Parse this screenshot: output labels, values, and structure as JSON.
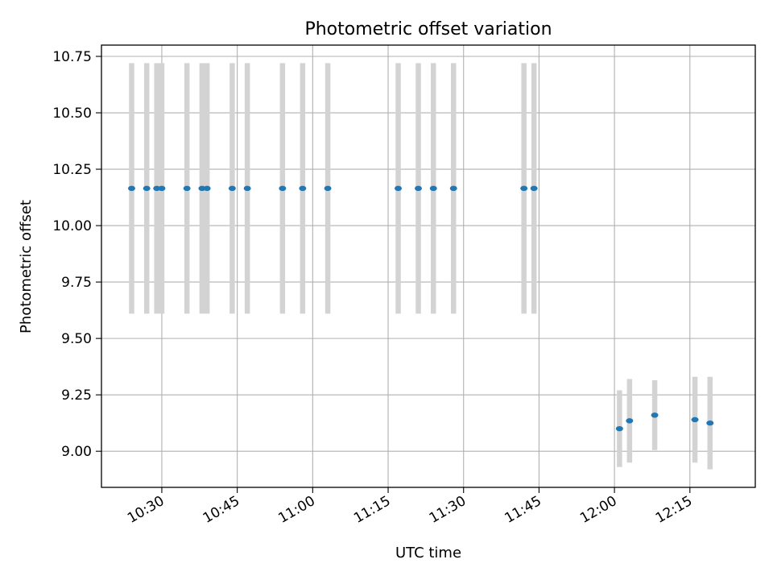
{
  "chart_data": {
    "type": "scatter",
    "title": "Photometric offset variation",
    "xlabel": "UTC time",
    "ylabel": "Photometric offset",
    "x_unit": "minutes after 10:00 UTC",
    "xlim": [
      "10:18",
      "12:28"
    ],
    "ylim": [
      8.84,
      10.8
    ],
    "grid": true,
    "legend": null,
    "x_ticks": [
      "10:30",
      "10:45",
      "11:00",
      "11:15",
      "11:30",
      "11:45",
      "12:00",
      "12:15"
    ],
    "y_ticks": [
      "9.00",
      "9.25",
      "9.50",
      "9.75",
      "10.00",
      "10.25",
      "10.50",
      "10.75"
    ],
    "colors": {
      "marker": "#1f77b4",
      "errorbar": "#d3d3d3",
      "grid": "#b0b0b0"
    },
    "series": [
      {
        "points": [
          {
            "t": "10:24",
            "y": 10.165,
            "err": 0.555
          },
          {
            "t": "10:27",
            "y": 10.165,
            "err": 0.555
          },
          {
            "t": "10:29",
            "y": 10.165,
            "err": 0.555
          },
          {
            "t": "10:30",
            "y": 10.165,
            "err": 0.555
          },
          {
            "t": "10:35",
            "y": 10.165,
            "err": 0.555
          },
          {
            "t": "10:38",
            "y": 10.165,
            "err": 0.555
          },
          {
            "t": "10:39",
            "y": 10.165,
            "err": 0.555
          },
          {
            "t": "10:44",
            "y": 10.165,
            "err": 0.555
          },
          {
            "t": "10:47",
            "y": 10.165,
            "err": 0.555
          },
          {
            "t": "10:54",
            "y": 10.165,
            "err": 0.555
          },
          {
            "t": "10:58",
            "y": 10.165,
            "err": 0.555
          },
          {
            "t": "11:03",
            "y": 10.165,
            "err": 0.555
          },
          {
            "t": "11:17",
            "y": 10.165,
            "err": 0.555
          },
          {
            "t": "11:21",
            "y": 10.165,
            "err": 0.555
          },
          {
            "t": "11:24",
            "y": 10.165,
            "err": 0.555
          },
          {
            "t": "11:28",
            "y": 10.165,
            "err": 0.555
          },
          {
            "t": "11:42",
            "y": 10.165,
            "err": 0.555
          },
          {
            "t": "11:44",
            "y": 10.165,
            "err": 0.555
          },
          {
            "t": "12:01",
            "y": 9.1,
            "err": 0.17
          },
          {
            "t": "12:03",
            "y": 9.135,
            "err": 0.185
          },
          {
            "t": "12:08",
            "y": 9.16,
            "err": 0.155
          },
          {
            "t": "12:16",
            "y": 9.14,
            "err": 0.19
          },
          {
            "t": "12:19",
            "y": 9.125,
            "err": 0.205
          }
        ]
      }
    ]
  }
}
